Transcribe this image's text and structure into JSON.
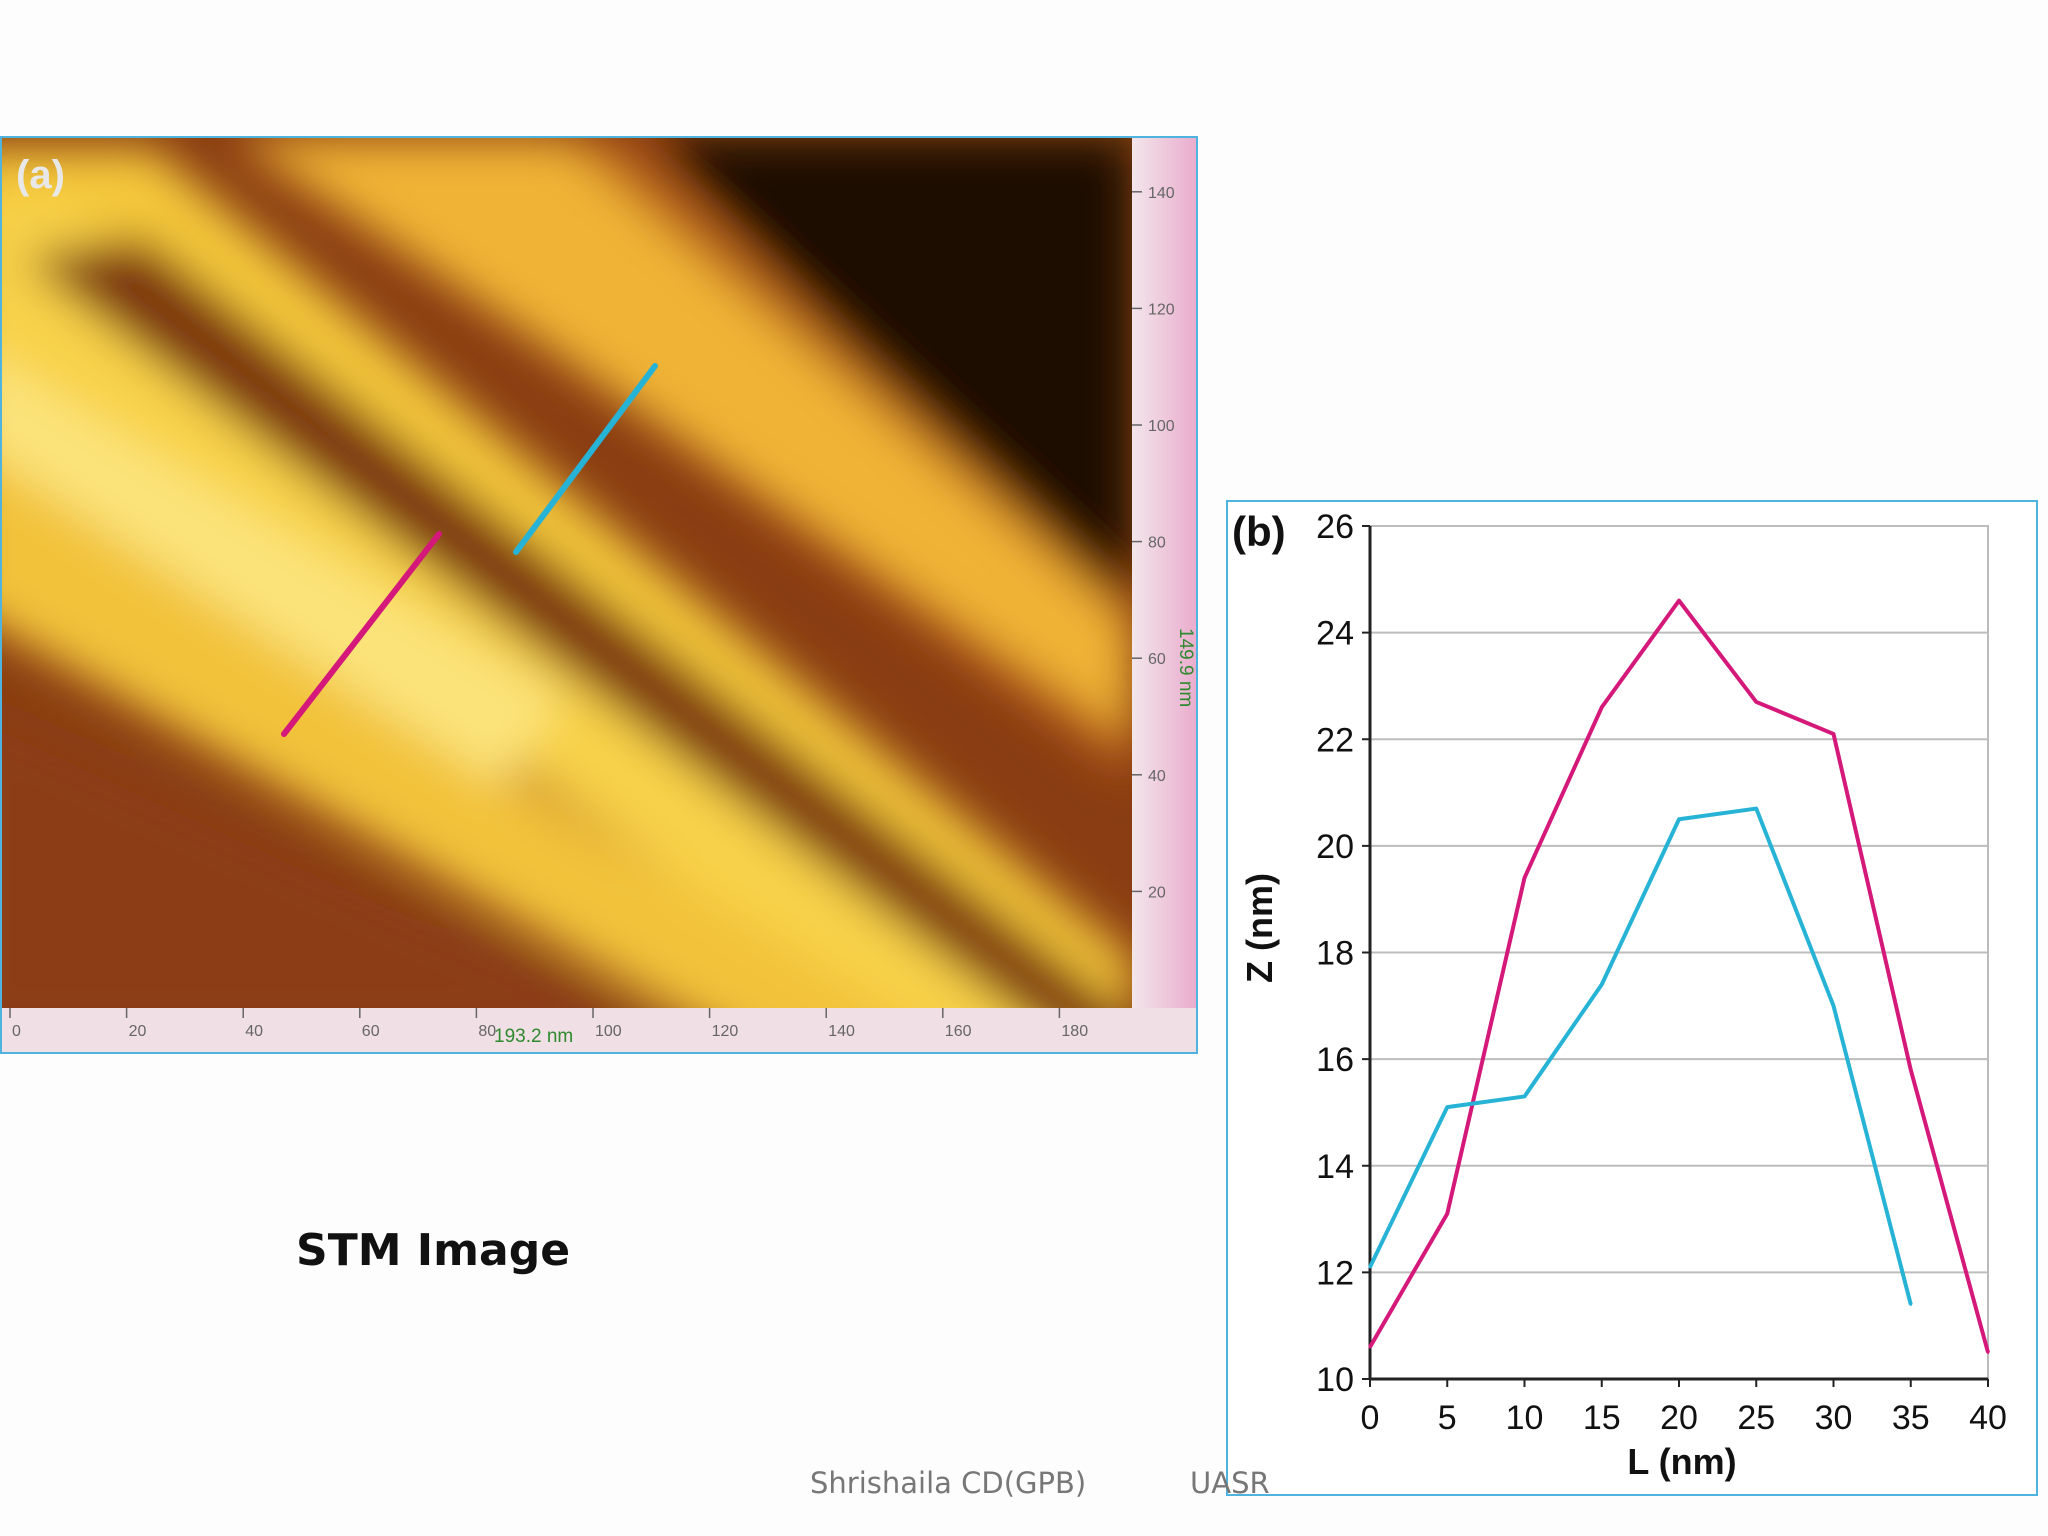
{
  "stm_image": {
    "panel_label": "(a)",
    "x_axis_label": "193.2 nm",
    "y_axis_label": "149.9 nm",
    "x_ticks": [
      "0",
      "20",
      "40",
      "60",
      "80",
      "100",
      "120",
      "140",
      "160",
      "180"
    ],
    "y_ticks": [
      "20",
      "40",
      "60",
      "80",
      "100",
      "120",
      "140"
    ],
    "caption": "STM Image"
  },
  "chart_data": {
    "type": "line",
    "panel_label": "(b)",
    "title": "",
    "xlabel": "L (nm)",
    "ylabel": "Z (nm)",
    "xlim": [
      0,
      40
    ],
    "ylim": [
      10,
      26
    ],
    "x_ticks": [
      0,
      5,
      10,
      15,
      20,
      25,
      30,
      35,
      40
    ],
    "y_ticks": [
      10,
      12,
      14,
      16,
      18,
      20,
      22,
      24,
      26
    ],
    "grid": true,
    "series": [
      {
        "color": "#d4197a",
        "x": [
          0,
          5,
          10,
          15,
          20,
          25,
          30,
          35,
          40
        ],
        "y": [
          10.6,
          13.1,
          19.4,
          22.6,
          24.6,
          22.7,
          22.1,
          15.8,
          10.5
        ]
      },
      {
        "color": "#27b3d6",
        "x": [
          0,
          5,
          10,
          15,
          20,
          25,
          30,
          35
        ],
        "y": [
          12.1,
          15.1,
          15.3,
          17.4,
          20.5,
          20.7,
          17.0,
          11.4
        ]
      }
    ]
  },
  "footer": {
    "author": "Shrishaila CD(GPB)",
    "org": "UASR"
  }
}
